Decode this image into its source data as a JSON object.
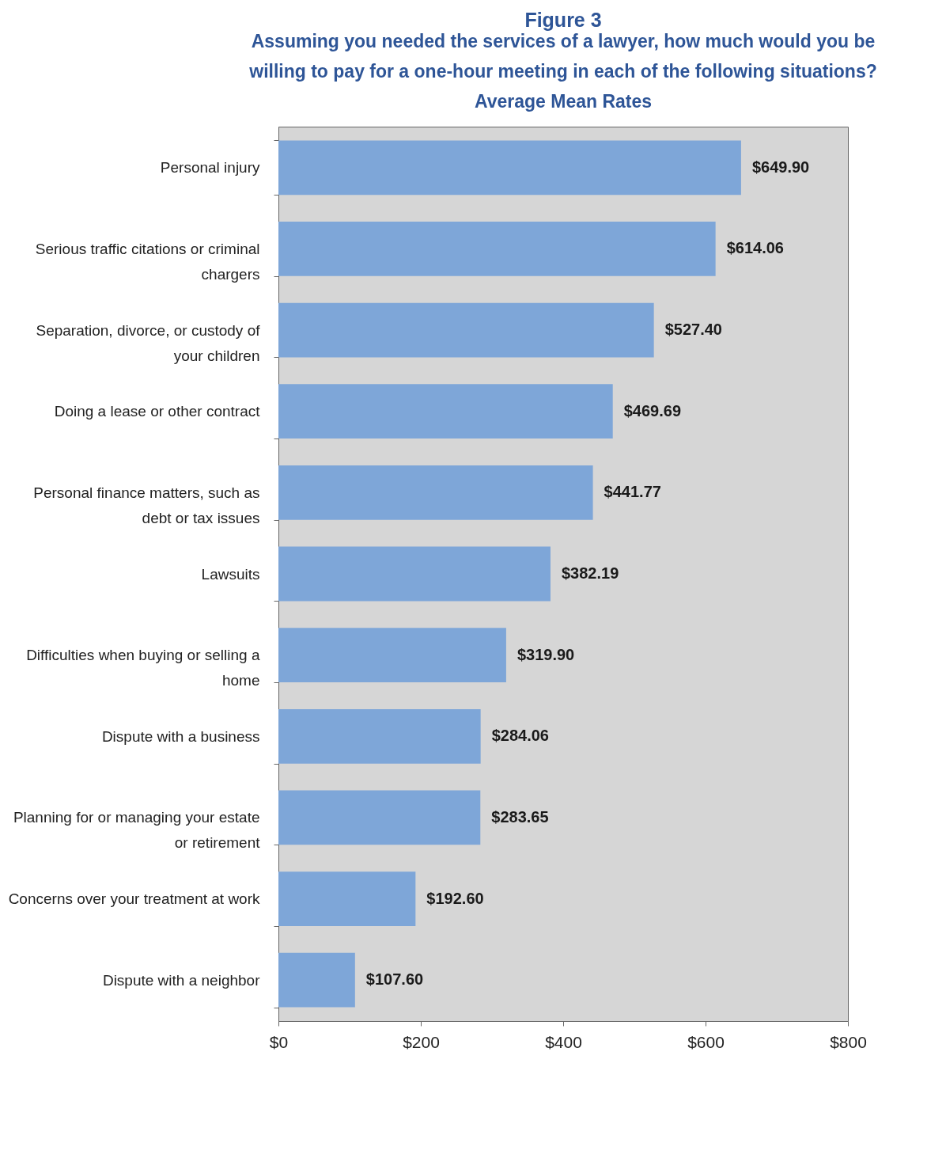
{
  "chart_data": {
    "type": "bar",
    "orientation": "horizontal",
    "title": "Figure 3",
    "subtitle": "Assuming you needed the services of a lawyer, how much would you be\nwilling to pay for a one-hour meeting in each of the following situations?",
    "annotations": [
      "Average Mean  Rates"
    ],
    "categories": [
      "Personal injury",
      "Serious traffic citations or criminal chargers",
      "Separation, divorce, or custody of your children",
      "Doing a lease or other contract",
      "Personal finance matters, such as debt or tax issues",
      "Lawsuits",
      "Difficulties when buying or selling a home",
      "Dispute with a business",
      "Planning for or managing your estate or retirement",
      "Concerns over your treatment at work",
      "Dispute with a neighbor"
    ],
    "values": [
      649.9,
      614.06,
      527.4,
      469.69,
      441.77,
      382.19,
      319.9,
      284.06,
      283.65,
      192.6,
      107.6
    ],
    "value_labels": [
      "$649.90",
      "$614.06",
      "$527.40",
      "$469.69",
      "$441.77",
      "$382.19",
      "$319.90",
      "$284.06",
      "$283.65",
      "$192.60",
      "$107.60"
    ],
    "color": "#7ea6d8",
    "grid": false,
    "xlim": [
      0,
      800
    ],
    "xticks": [
      {
        "value": 0,
        "label": "$0"
      },
      {
        "value": 200,
        "label": "$200"
      },
      {
        "value": 400,
        "label": "$400"
      },
      {
        "value": 600,
        "label": "$600"
      },
      {
        "value": 800,
        "label": "$800"
      }
    ]
  }
}
